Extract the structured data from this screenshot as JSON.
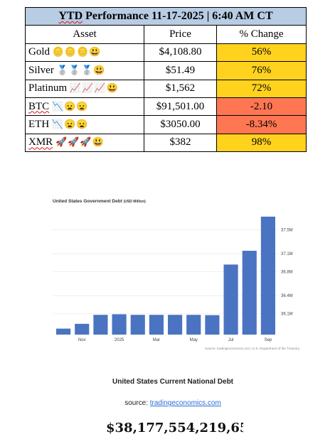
{
  "table": {
    "title_ytd": "YTD",
    "title_rest": " Performance 11-17-2025 | 6:40 AM CT",
    "headers": [
      "Asset",
      "Price",
      "% Change"
    ],
    "rows": [
      {
        "asset": "Gold",
        "emoji": "🪙🪙🪙😃",
        "price": "$4,108.80",
        "change": "56%",
        "status": "up",
        "spell_flag": false
      },
      {
        "asset": "Silver",
        "emoji": "🥈🥈🥈😃",
        "price": "$51.49",
        "change": "76%",
        "status": "up",
        "spell_flag": false
      },
      {
        "asset": "Platinum",
        "emoji": "📈📈📈😃",
        "price": "$1,562",
        "change": "72%",
        "status": "up",
        "spell_flag": false
      },
      {
        "asset": "BTC",
        "emoji": "📉😦😦",
        "price": "$91,501.00",
        "change": "-2.10",
        "status": "down",
        "spell_flag": true
      },
      {
        "asset": "ETH",
        "emoji": "📉😦😦",
        "price": "$3050.00",
        "change": "-8.34%",
        "status": "down",
        "spell_flag": false
      },
      {
        "asset": "XMR",
        "emoji": "🚀🚀🚀😃",
        "price": "$382",
        "change": "98%",
        "status": "up",
        "spell_flag": true
      }
    ],
    "colors": {
      "up": "#ffd21e",
      "down": "#ff7752",
      "title_bg": "#b8cce4"
    }
  },
  "chart_data": {
    "type": "bar",
    "title": "United States Government Debt",
    "title_unit": "(USD Million)",
    "x_tick_labels": [
      "Nov",
      "2025",
      "Mar",
      "May",
      "Jul",
      "Sep"
    ],
    "x_tick_index": [
      1,
      3,
      5,
      7,
      9,
      11
    ],
    "values": [
      35850000,
      35930000,
      36080000,
      36090000,
      36080000,
      36080000,
      36080000,
      36080000,
      36075000,
      36920000,
      37150000,
      37720000
    ],
    "y_ticks": [
      36100000,
      36400000,
      36800000,
      37100000,
      37500000
    ],
    "y_tick_labels": [
      "36.1M",
      "36.4M",
      "36.8M",
      "37.1M",
      "37.5M"
    ],
    "ylim": [
      35750000,
      37850000
    ],
    "source": "Source: tradingeconomics.com | U.S. Department of the Treasury",
    "bar_color": "#4a74c2",
    "grid": true
  },
  "footer": {
    "title": "United States Current National Debt",
    "source_prefix": "source: ",
    "source_link": "tradingeconomics.com",
    "debt_value": "$38,177,554,219,65"
  }
}
